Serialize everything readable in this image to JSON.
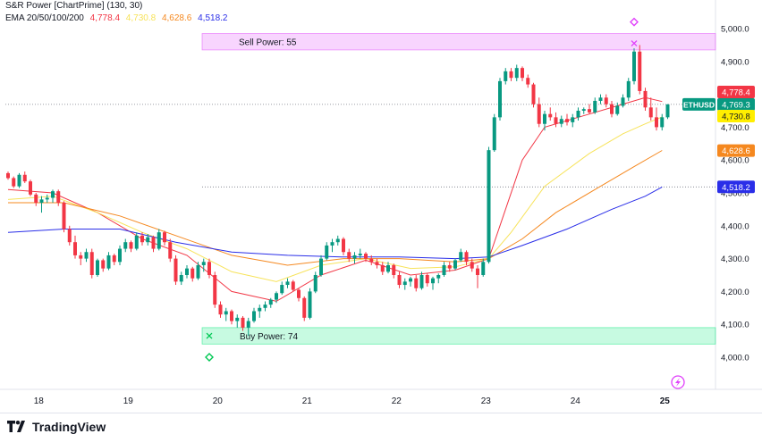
{
  "indicators": {
    "sr_title": "S&R Power [ChartPrime] (130, 30)",
    "ema_title": "EMA 20/50/100/200",
    "ema_values": [
      {
        "text": "4,778.4",
        "color": "#f23645"
      },
      {
        "text": "4,730.8",
        "color": "#f7e35a"
      },
      {
        "text": "4,628.6",
        "color": "#f5881f"
      },
      {
        "text": "4,518.2",
        "color": "#2a2ee8"
      }
    ]
  },
  "footer": {
    "brand": "TradingView",
    "logo_icon": "tradingview-logo-icon"
  },
  "chart_data": {
    "type": "candlestick",
    "symbol": "ETHUSD",
    "x_tick_labels": [
      "18",
      "19",
      "20",
      "21",
      "22",
      "23",
      "24",
      "25"
    ],
    "y_tick_labels": [
      "4,000.0",
      "4,100.0",
      "4,200.0",
      "4,300.0",
      "4,400.0",
      "4,500.0",
      "4,600.0",
      "4,700.0",
      "4,800.0",
      "4,900.0",
      "5,000.0"
    ],
    "ylim": [
      3960,
      5050
    ],
    "grid": false,
    "candles": [
      [
        4560,
        4565,
        4540,
        4545
      ],
      [
        4545,
        4550,
        4515,
        4520
      ],
      [
        4520,
        4560,
        4515,
        4555
      ],
      [
        4555,
        4565,
        4530,
        4535
      ],
      [
        4535,
        4540,
        4490,
        4495
      ],
      [
        4495,
        4500,
        4460,
        4470
      ],
      [
        4470,
        4490,
        4440,
        4480
      ],
      [
        4480,
        4495,
        4470,
        4485
      ],
      [
        4485,
        4510,
        4470,
        4505
      ],
      [
        4505,
        4510,
        4460,
        4470
      ],
      [
        4470,
        4475,
        4380,
        4390
      ],
      [
        4390,
        4400,
        4340,
        4350
      ],
      [
        4350,
        4370,
        4300,
        4310
      ],
      [
        4310,
        4320,
        4280,
        4300
      ],
      [
        4300,
        4330,
        4290,
        4320
      ],
      [
        4320,
        4330,
        4240,
        4250
      ],
      [
        4250,
        4300,
        4245,
        4295
      ],
      [
        4295,
        4300,
        4260,
        4270
      ],
      [
        4270,
        4320,
        4265,
        4310
      ],
      [
        4310,
        4315,
        4280,
        4290
      ],
      [
        4290,
        4340,
        4280,
        4330
      ],
      [
        4330,
        4360,
        4320,
        4350
      ],
      [
        4350,
        4355,
        4320,
        4330
      ],
      [
        4330,
        4380,
        4325,
        4370
      ],
      [
        4370,
        4380,
        4340,
        4350
      ],
      [
        4350,
        4375,
        4340,
        4365
      ],
      [
        4365,
        4370,
        4320,
        4330
      ],
      [
        4330,
        4390,
        4325,
        4380
      ],
      [
        4380,
        4385,
        4340,
        4350
      ],
      [
        4350,
        4360,
        4290,
        4300
      ],
      [
        4300,
        4310,
        4220,
        4230
      ],
      [
        4230,
        4260,
        4220,
        4250
      ],
      [
        4250,
        4280,
        4240,
        4270
      ],
      [
        4270,
        4275,
        4230,
        4240
      ],
      [
        4240,
        4290,
        4235,
        4280
      ],
      [
        4280,
        4300,
        4260,
        4290
      ],
      [
        4290,
        4300,
        4240,
        4250
      ],
      [
        4250,
        4260,
        4150,
        4160
      ],
      [
        4160,
        4170,
        4120,
        4130
      ],
      [
        4130,
        4150,
        4110,
        4140
      ],
      [
        4140,
        4145,
        4100,
        4110
      ],
      [
        4110,
        4130,
        4090,
        4120
      ],
      [
        4120,
        4125,
        4080,
        4090
      ],
      [
        4090,
        4120,
        4065,
        4110
      ],
      [
        4110,
        4150,
        4105,
        4140
      ],
      [
        4140,
        4160,
        4120,
        4150
      ],
      [
        4150,
        4170,
        4140,
        4160
      ],
      [
        4160,
        4180,
        4150,
        4175
      ],
      [
        4175,
        4200,
        4165,
        4195
      ],
      [
        4195,
        4230,
        4190,
        4220
      ],
      [
        4220,
        4240,
        4210,
        4230
      ],
      [
        4230,
        4235,
        4200,
        4205
      ],
      [
        4205,
        4210,
        4170,
        4180
      ],
      [
        4180,
        4185,
        4110,
        4120
      ],
      [
        4120,
        4210,
        4115,
        4200
      ],
      [
        4200,
        4260,
        4195,
        4250
      ],
      [
        4250,
        4310,
        4245,
        4300
      ],
      [
        4300,
        4350,
        4295,
        4340
      ],
      [
        4340,
        4360,
        4320,
        4350
      ],
      [
        4350,
        4370,
        4340,
        4360
      ],
      [
        4360,
        4365,
        4310,
        4320
      ],
      [
        4320,
        4330,
        4290,
        4300
      ],
      [
        4300,
        4320,
        4285,
        4310
      ],
      [
        4310,
        4330,
        4300,
        4315
      ],
      [
        4315,
        4320,
        4290,
        4300
      ],
      [
        4300,
        4310,
        4280,
        4290
      ],
      [
        4290,
        4300,
        4270,
        4280
      ],
      [
        4280,
        4290,
        4250,
        4260
      ],
      [
        4260,
        4290,
        4255,
        4280
      ],
      [
        4280,
        4285,
        4240,
        4250
      ],
      [
        4250,
        4260,
        4210,
        4220
      ],
      [
        4220,
        4240,
        4205,
        4230
      ],
      [
        4230,
        4245,
        4215,
        4240
      ],
      [
        4240,
        4250,
        4200,
        4210
      ],
      [
        4210,
        4260,
        4205,
        4250
      ],
      [
        4250,
        4255,
        4215,
        4225
      ],
      [
        4225,
        4245,
        4205,
        4240
      ],
      [
        4240,
        4255,
        4225,
        4250
      ],
      [
        4250,
        4290,
        4245,
        4280
      ],
      [
        4280,
        4290,
        4260,
        4270
      ],
      [
        4270,
        4300,
        4265,
        4295
      ],
      [
        4295,
        4330,
        4290,
        4320
      ],
      [
        4320,
        4325,
        4280,
        4290
      ],
      [
        4290,
        4300,
        4260,
        4270
      ],
      [
        4270,
        4280,
        4210,
        4250
      ],
      [
        4250,
        4300,
        4245,
        4290
      ],
      [
        4290,
        4640,
        4285,
        4630
      ],
      [
        4630,
        4740,
        4625,
        4730
      ],
      [
        4730,
        4850,
        4720,
        4840
      ],
      [
        4840,
        4880,
        4830,
        4870
      ],
      [
        4870,
        4880,
        4840,
        4850
      ],
      [
        4850,
        4890,
        4840,
        4880
      ],
      [
        4880,
        4885,
        4840,
        4850
      ],
      [
        4850,
        4860,
        4820,
        4830
      ],
      [
        4830,
        4835,
        4760,
        4770
      ],
      [
        4770,
        4790,
        4700,
        4710
      ],
      [
        4710,
        4750,
        4690,
        4740
      ],
      [
        4740,
        4760,
        4720,
        4730
      ],
      [
        4730,
        4745,
        4700,
        4710
      ],
      [
        4710,
        4735,
        4700,
        4725
      ],
      [
        4725,
        4740,
        4705,
        4715
      ],
      [
        4715,
        4740,
        4700,
        4730
      ],
      [
        4730,
        4760,
        4720,
        4750
      ],
      [
        4750,
        4760,
        4740,
        4755
      ],
      [
        4755,
        4770,
        4740,
        4745
      ],
      [
        4745,
        4790,
        4740,
        4780
      ],
      [
        4780,
        4800,
        4770,
        4790
      ],
      [
        4790,
        4800,
        4760,
        4770
      ],
      [
        4770,
        4780,
        4730,
        4740
      ],
      [
        4740,
        4775,
        4735,
        4765
      ],
      [
        4765,
        4800,
        4760,
        4790
      ],
      [
        4790,
        4850,
        4780,
        4840
      ],
      [
        4840,
        4940,
        4830,
        4930
      ],
      [
        4930,
        4950,
        4800,
        4810
      ],
      [
        4810,
        4820,
        4750,
        4760
      ],
      [
        4760,
        4790,
        4720,
        4730
      ],
      [
        4730,
        4760,
        4690,
        4700
      ],
      [
        4700,
        4740,
        4690,
        4730
      ],
      [
        4730,
        4770,
        4725,
        4769.3
      ]
    ],
    "ema_lines": [
      {
        "name": "EMA 20",
        "color": "#f23645",
        "last": 4778.4,
        "points": [
          [
            0,
            4510
          ],
          [
            8,
            4500
          ],
          [
            16,
            4440
          ],
          [
            24,
            4360
          ],
          [
            32,
            4310
          ],
          [
            40,
            4200
          ],
          [
            48,
            4170
          ],
          [
            56,
            4250
          ],
          [
            64,
            4295
          ],
          [
            72,
            4250
          ],
          [
            80,
            4265
          ],
          [
            86,
            4300
          ],
          [
            88,
            4400
          ],
          [
            92,
            4600
          ],
          [
            96,
            4700
          ],
          [
            104,
            4740
          ],
          [
            110,
            4770
          ],
          [
            114,
            4790
          ],
          [
            117,
            4778
          ]
        ]
      },
      {
        "name": "EMA 50",
        "color": "#f7e35a",
        "last": 4730.8,
        "points": [
          [
            0,
            4480
          ],
          [
            8,
            4490
          ],
          [
            16,
            4440
          ],
          [
            24,
            4380
          ],
          [
            32,
            4330
          ],
          [
            40,
            4260
          ],
          [
            48,
            4230
          ],
          [
            56,
            4280
          ],
          [
            64,
            4300
          ],
          [
            72,
            4270
          ],
          [
            80,
            4275
          ],
          [
            86,
            4300
          ],
          [
            90,
            4380
          ],
          [
            96,
            4520
          ],
          [
            104,
            4620
          ],
          [
            110,
            4680
          ],
          [
            114,
            4710
          ],
          [
            117,
            4731
          ]
        ]
      },
      {
        "name": "EMA 100",
        "color": "#f5881f",
        "last": 4628.6,
        "points": [
          [
            0,
            4470
          ],
          [
            10,
            4470
          ],
          [
            20,
            4430
          ],
          [
            30,
            4370
          ],
          [
            40,
            4310
          ],
          [
            50,
            4280
          ],
          [
            60,
            4300
          ],
          [
            70,
            4300
          ],
          [
            80,
            4290
          ],
          [
            86,
            4300
          ],
          [
            92,
            4360
          ],
          [
            98,
            4440
          ],
          [
            106,
            4520
          ],
          [
            112,
            4580
          ],
          [
            117,
            4629
          ]
        ]
      },
      {
        "name": "EMA 200",
        "color": "#2a2ee8",
        "last": 4518.2,
        "points": [
          [
            0,
            4380
          ],
          [
            10,
            4390
          ],
          [
            20,
            4390
          ],
          [
            30,
            4350
          ],
          [
            40,
            4320
          ],
          [
            50,
            4310
          ],
          [
            60,
            4305
          ],
          [
            70,
            4305
          ],
          [
            80,
            4300
          ],
          [
            86,
            4305
          ],
          [
            92,
            4340
          ],
          [
            100,
            4390
          ],
          [
            108,
            4450
          ],
          [
            114,
            4490
          ],
          [
            117,
            4518
          ]
        ]
      }
    ],
    "zones": [
      {
        "label": "Sell Power: 55",
        "low": 4935,
        "high": 4985,
        "color": "#e040fb"
      },
      {
        "label": "Buy Power: 74",
        "low": 4040,
        "high": 4090,
        "color": "#00e676"
      }
    ],
    "markers": [
      {
        "type": "sell-x",
        "x": 112,
        "y": 4955
      },
      {
        "type": "sell-diamond",
        "x": 112,
        "y": 5020
      },
      {
        "type": "buy-x",
        "x": 36,
        "y": 4065
      },
      {
        "type": "buy-diamond",
        "x": 36,
        "y": 4000
      }
    ],
    "price_labels": [
      {
        "text": "4,778.4",
        "value": 4778.4,
        "bg": "#f23645",
        "fg": "#ffffff"
      },
      {
        "text": "ETHUSD",
        "value": 4769.3,
        "bg": "#089981",
        "fg": "#ffffff",
        "side": "left"
      },
      {
        "text": "4,769.3",
        "value": 4769.3,
        "bg": "#089981",
        "fg": "#ffffff"
      },
      {
        "text": "4,730.8",
        "value": 4730.8,
        "bg": "#ffee00",
        "fg": "#131722"
      },
      {
        "text": "4,628.6",
        "value": 4628.6,
        "bg": "#f5881f",
        "fg": "#ffffff"
      },
      {
        "text": "4,518.2",
        "value": 4518.2,
        "bg": "#2a2ee8",
        "fg": "#ffffff"
      }
    ],
    "reference_lines": [
      4769.3,
      4518.2
    ],
    "up_color": "#089981",
    "down_color": "#f23645"
  }
}
